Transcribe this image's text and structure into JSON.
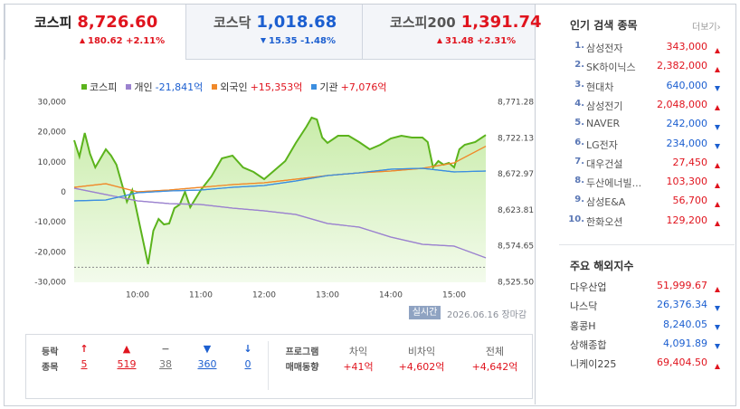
{
  "tabs": [
    {
      "name": "코스피",
      "value": "8,726.60",
      "change": "180.62",
      "rate": "+2.11%",
      "direction": "up",
      "active": true
    },
    {
      "name": "코스닥",
      "value": "1,018.68",
      "change": "15.35",
      "rate": "-1.48%",
      "direction": "down",
      "active": false
    },
    {
      "name": "코스피200",
      "value": "1,391.74",
      "change": "31.48",
      "rate": "+2.31%",
      "direction": "up",
      "active": false
    }
  ],
  "chart_data": {
    "type": "line",
    "xlim": [
      "09:00",
      "15:30"
    ],
    "xticks": [
      "10:00",
      "11:00",
      "12:00",
      "13:00",
      "14:00",
      "15:00"
    ],
    "ylim": [
      -30000,
      30000
    ],
    "yticks": [
      {
        "value": 30000,
        "label": "30,000"
      },
      {
        "value": 20000,
        "label": "20,000"
      },
      {
        "value": 10000,
        "label": "10,000"
      },
      0,
      {
        "value": -10000,
        "label": "-10,000"
      },
      {
        "value": -20000,
        "label": "-20,000"
      },
      {
        "value": -30000,
        "label": "-30,000"
      }
    ],
    "y2lim": [
      8525.5,
      8771.28
    ],
    "y2ticks": [
      {
        "value": 8771.28,
        "label": "8,771.28"
      },
      {
        "value": 8722.13,
        "label": "8,722.13"
      },
      {
        "value": 8672.97,
        "label": "8,672.97"
      },
      {
        "value": 8623.81,
        "label": "8,623.81"
      },
      {
        "value": 8574.65,
        "label": "8,574.65"
      },
      {
        "value": 8525.5,
        "label": "8,525.50"
      }
    ],
    "reference_line": 8545.98,
    "series": [
      {
        "name": "코스피",
        "color": "#5bb31c",
        "axis": "y2",
        "area": true,
        "x": [
          "09:00",
          "09:05",
          "09:10",
          "09:15",
          "09:20",
          "09:30",
          "09:35",
          "09:40",
          "09:50",
          "09:55",
          "10:10",
          "10:15",
          "10:20",
          "10:25",
          "10:30",
          "10:35",
          "10:40",
          "10:45",
          "10:50",
          "11:00",
          "11:10",
          "11:20",
          "11:30",
          "11:40",
          "11:50",
          "12:00",
          "12:10",
          "12:20",
          "12:30",
          "12:40",
          "12:45",
          "12:50",
          "12:55",
          "13:00",
          "13:10",
          "13:20",
          "13:30",
          "13:40",
          "13:50",
          "14:00",
          "14:10",
          "14:20",
          "14:30",
          "14:35",
          "14:40",
          "14:45",
          "14:50",
          "14:55",
          "15:00",
          "15:05",
          "15:10",
          "15:20",
          "15:30"
        ],
        "values": [
          8719.4,
          8697.2,
          8729.3,
          8700.9,
          8682.4,
          8707.1,
          8698.4,
          8686.1,
          8635.4,
          8651.5,
          8550.2,
          8595.9,
          8612.0,
          8604.5,
          8605.8,
          8626.8,
          8631.7,
          8649.0,
          8628.0,
          8651.5,
          8670.0,
          8694.7,
          8698.4,
          8682.4,
          8676.2,
          8666.3,
          8678.7,
          8691.0,
          8715.7,
          8737.9,
          8750.3,
          8747.8,
          8723.1,
          8715.7,
          8725.6,
          8725.6,
          8716.9,
          8707.1,
          8713.2,
          8721.9,
          8725.6,
          8723.1,
          8723.1,
          8716.9,
          8682.4,
          8691.0,
          8686.1,
          8688.5,
          8682.4,
          8707.1,
          8713.2,
          8716.9,
          8726.6
        ]
      },
      {
        "name": "개인",
        "legend_label": "-21,841억",
        "color": "#9b82cf",
        "x": [
          "09:00",
          "09:30",
          "10:00",
          "10:30",
          "11:00",
          "11:30",
          "12:00",
          "12:30",
          "13:00",
          "13:30",
          "14:00",
          "14:30",
          "15:00",
          "15:30"
        ],
        "values": [
          1357,
          -754,
          -2864,
          -3769,
          -4070,
          -5276,
          -6181,
          -7387,
          -10402,
          -11608,
          -14924,
          -17336,
          -17939,
          -21841
        ]
      },
      {
        "name": "외국인",
        "legend_label": "+15,353억",
        "color": "#f0892a",
        "x": [
          "09:00",
          "09:30",
          "10:00",
          "10:30",
          "11:00",
          "11:30",
          "12:00",
          "12:30",
          "13:00",
          "13:30",
          "14:00",
          "14:30",
          "15:00",
          "15:30"
        ],
        "values": [
          1658,
          2864,
          151,
          754,
          1658,
          2563,
          3166,
          4372,
          5578,
          6482,
          7085,
          7990,
          9799,
          15353
        ]
      },
      {
        "name": "기관",
        "legend_label": "+7,076억",
        "color": "#3b8ee0",
        "x": [
          "09:00",
          "09:30",
          "10:00",
          "10:30",
          "11:00",
          "11:30",
          "12:00",
          "12:30",
          "13:00",
          "13:30",
          "14:00",
          "14:30",
          "15:00",
          "15:30"
        ],
        "values": [
          -2864,
          -2563,
          -151,
          452,
          754,
          1658,
          2261,
          3769,
          5578,
          6482,
          7688,
          7990,
          6784,
          7076
        ]
      }
    ]
  },
  "chart_footer": {
    "badge": "실시간",
    "date": "2026.06.16",
    "status": "장마감"
  },
  "breadth": {
    "label": [
      "등락",
      "종목"
    ],
    "items": [
      {
        "icon": "↑",
        "count": "5",
        "direction": "up"
      },
      {
        "icon": "▲",
        "count": "519",
        "direction": "up"
      },
      {
        "icon": "−",
        "count": "38",
        "direction": "flat"
      },
      {
        "icon": "▼",
        "count": "360",
        "direction": "down"
      },
      {
        "icon": "↓",
        "count": "0",
        "direction": "down"
      }
    ]
  },
  "program": {
    "label": [
      "프로그램",
      "매매동향"
    ],
    "columns": [
      {
        "name": "차익",
        "value": "+41억"
      },
      {
        "name": "비차익",
        "value": "+4,602억"
      },
      {
        "name": "전체",
        "value": "+4,642억"
      }
    ]
  },
  "popular": {
    "title": "인기 검색 종목",
    "more": "더보기",
    "items": [
      {
        "rank": "1.",
        "name": "삼성전자",
        "price": "343,000",
        "direction": "up"
      },
      {
        "rank": "2.",
        "name": "SK하이닉스",
        "price": "2,382,000",
        "direction": "up"
      },
      {
        "rank": "3.",
        "name": "현대차",
        "price": "640,000",
        "direction": "down"
      },
      {
        "rank": "4.",
        "name": "삼성전기",
        "price": "2,048,000",
        "direction": "up"
      },
      {
        "rank": "5.",
        "name": "NAVER",
        "price": "242,000",
        "direction": "down"
      },
      {
        "rank": "6.",
        "name": "LG전자",
        "price": "234,000",
        "direction": "down"
      },
      {
        "rank": "7.",
        "name": "대우건설",
        "price": "27,450",
        "direction": "up"
      },
      {
        "rank": "8.",
        "name": "두산에너빌...",
        "price": "103,300",
        "direction": "up"
      },
      {
        "rank": "9.",
        "name": "삼성E&A",
        "price": "56,700",
        "direction": "up"
      },
      {
        "rank": "10.",
        "name": "한화오션",
        "price": "129,200",
        "direction": "up"
      }
    ]
  },
  "world": {
    "title": "주요 해외지수",
    "items": [
      {
        "name": "다우산업",
        "value": "51,999.67",
        "direction": "up"
      },
      {
        "name": "나스닥",
        "value": "26,376.34",
        "direction": "down"
      },
      {
        "name": "홍콩H",
        "value": "8,240.05",
        "direction": "down"
      },
      {
        "name": "상해종합",
        "value": "4,091.89",
        "direction": "down"
      },
      {
        "name": "니케이225",
        "value": "69,404.50",
        "direction": "up"
      }
    ]
  }
}
